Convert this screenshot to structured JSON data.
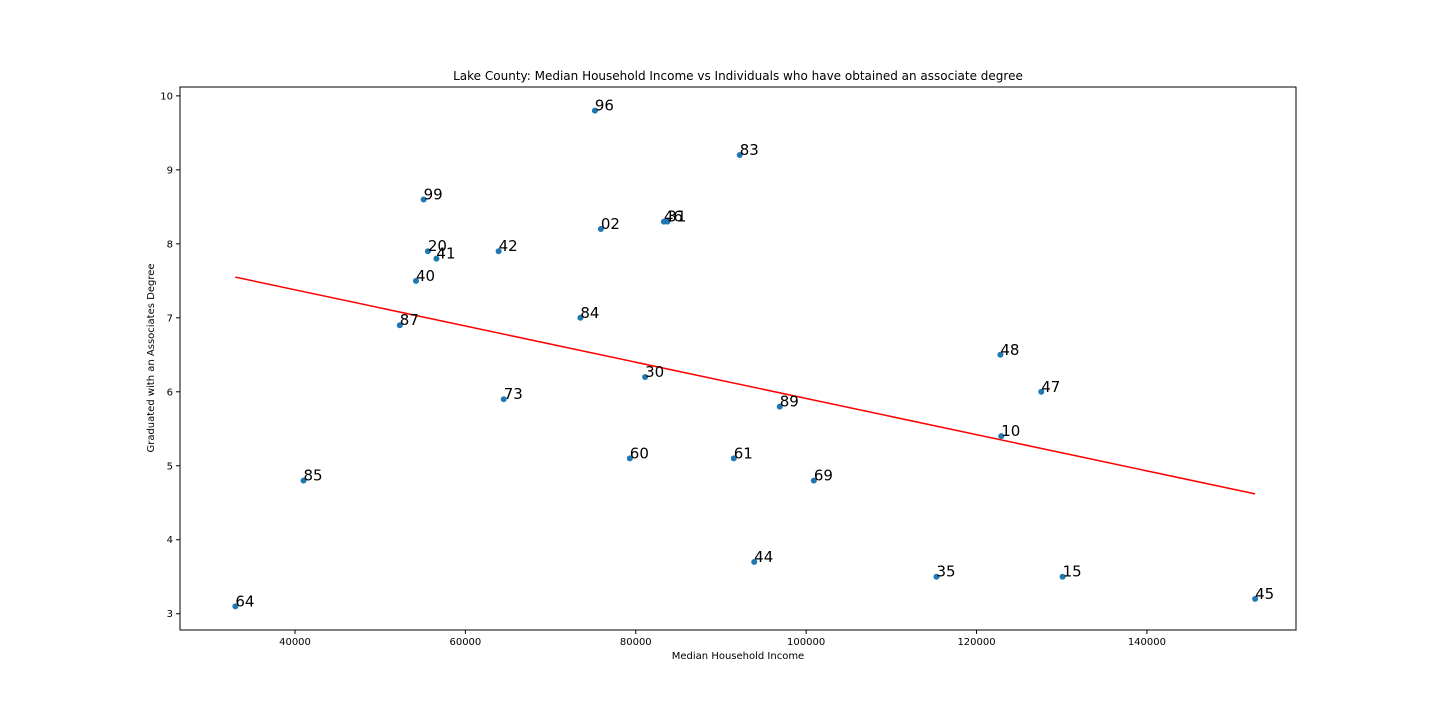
{
  "chart_data": {
    "type": "scatter",
    "title": "Lake County: Median Household Income vs Individuals who have obtained an associate degree",
    "xlabel": "Median Household Income",
    "ylabel": "Graduated with an Associates Degree",
    "xlim": [
      26500,
      157500
    ],
    "ylim": [
      2.78,
      10.12
    ],
    "xticks": [
      40000,
      60000,
      80000,
      100000,
      120000,
      140000
    ],
    "yticks": [
      3,
      4,
      5,
      6,
      7,
      8,
      9,
      10
    ],
    "grid": false,
    "colors": {
      "points": "#1f77b4",
      "regression": "#ff0000"
    },
    "points": [
      {
        "label": "96",
        "x": 75200,
        "y": 9.8
      },
      {
        "label": "83",
        "x": 92200,
        "y": 9.2
      },
      {
        "label": "99",
        "x": 55100,
        "y": 8.6
      },
      {
        "label": "46",
        "x": 83300,
        "y": 8.3
      },
      {
        "label": "31",
        "x": 83700,
        "y": 8.3
      },
      {
        "label": "02",
        "x": 75900,
        "y": 8.2
      },
      {
        "label": "20",
        "x": 55600,
        "y": 7.9
      },
      {
        "label": "42",
        "x": 63900,
        "y": 7.9
      },
      {
        "label": "41",
        "x": 56600,
        "y": 7.8
      },
      {
        "label": "40",
        "x": 54200,
        "y": 7.5
      },
      {
        "label": "84",
        "x": 73500,
        "y": 7.0
      },
      {
        "label": "87",
        "x": 52300,
        "y": 6.9
      },
      {
        "label": "48",
        "x": 122800,
        "y": 6.5
      },
      {
        "label": "30",
        "x": 81100,
        "y": 6.2
      },
      {
        "label": "47",
        "x": 127600,
        "y": 6.0
      },
      {
        "label": "73",
        "x": 64500,
        "y": 5.9
      },
      {
        "label": "89",
        "x": 96900,
        "y": 5.8
      },
      {
        "label": "10",
        "x": 122900,
        "y": 5.4
      },
      {
        "label": "60",
        "x": 79300,
        "y": 5.1
      },
      {
        "label": "61",
        "x": 91500,
        "y": 5.1
      },
      {
        "label": "85",
        "x": 41000,
        "y": 4.8
      },
      {
        "label": "69",
        "x": 100900,
        "y": 4.8
      },
      {
        "label": "44",
        "x": 93900,
        "y": 3.7
      },
      {
        "label": "35",
        "x": 115300,
        "y": 3.5
      },
      {
        "label": "15",
        "x": 130100,
        "y": 3.5
      },
      {
        "label": "45",
        "x": 152700,
        "y": 3.2
      },
      {
        "label": "64",
        "x": 33000,
        "y": 3.1
      }
    ],
    "regression_line": {
      "x": [
        33000,
        152700
      ],
      "y": [
        7.55,
        4.62
      ]
    }
  }
}
